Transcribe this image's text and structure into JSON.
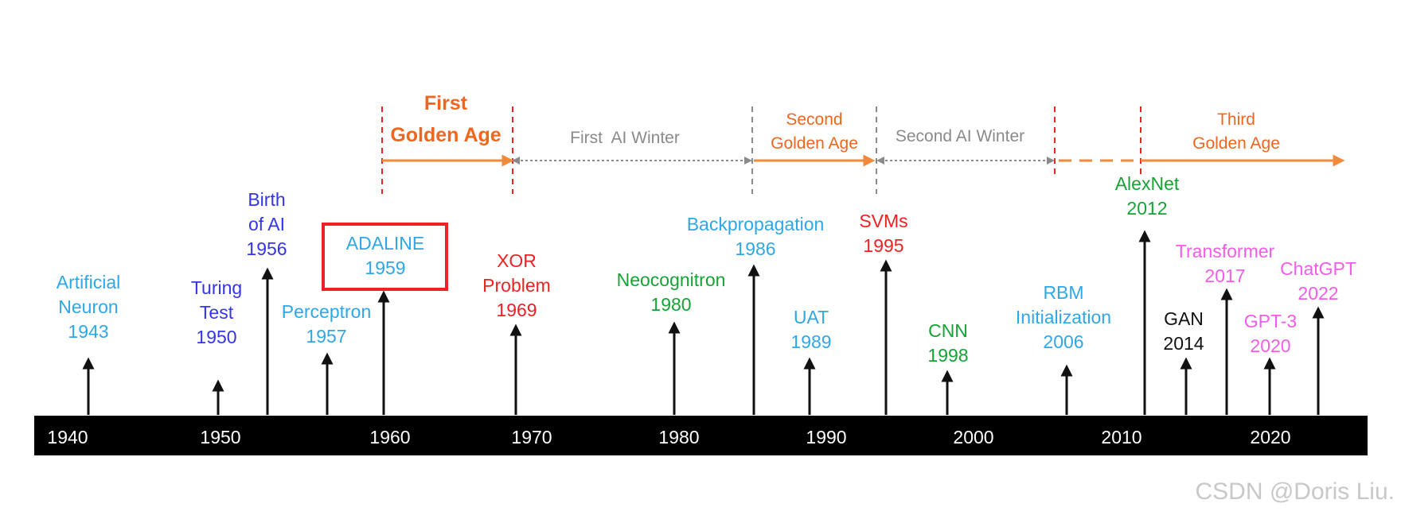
{
  "colors": {
    "light_blue": "#2fa7e6",
    "blue": "#3434e8",
    "red": "#ee2222",
    "green": "#16a336",
    "magenta": "#f25ce8",
    "black": "#111111",
    "orange": "#f0661e",
    "orange_light": "#f08a3c",
    "gray": "#8a8a8a",
    "axis_bg": "#000000",
    "axis_text": "#ffffff",
    "watermark": "#c8c8c8"
  },
  "axis": {
    "labels": [
      "1940",
      "1950",
      "1960",
      "1970",
      "1980",
      "1990",
      "2000",
      "2010",
      "2020"
    ]
  },
  "periods": {
    "first_golden_age": {
      "line1": "First",
      "line2": "Golden Age"
    },
    "first_ai_winter": {
      "label": "First  AI Winter"
    },
    "second_golden_age": {
      "line1": "Second",
      "line2": "Golden Age"
    },
    "second_ai_winter": {
      "label": "Second AI Winter"
    },
    "third_golden_age": {
      "line1": "Third",
      "line2": "Golden Age"
    }
  },
  "events": [
    {
      "lines": [
        "Artificial",
        "Neuron",
        "1943"
      ],
      "color": "light_blue"
    },
    {
      "lines": [
        "Turing",
        "Test",
        "1950"
      ],
      "color": "blue"
    },
    {
      "lines": [
        "Birth",
        "of AI",
        "1956"
      ],
      "color": "blue"
    },
    {
      "lines": [
        "Perceptron",
        "1957"
      ],
      "color": "light_blue"
    },
    {
      "lines": [
        "ADALINE",
        "1959"
      ],
      "color": "light_blue",
      "highlighted": true
    },
    {
      "lines": [
        "XOR",
        "Problem",
        "1969"
      ],
      "color": "red"
    },
    {
      "lines": [
        "Neocognitron",
        "1980"
      ],
      "color": "green"
    },
    {
      "lines": [
        "Backpropagation",
        "1986"
      ],
      "color": "light_blue"
    },
    {
      "lines": [
        "UAT",
        "1989"
      ],
      "color": "light_blue"
    },
    {
      "lines": [
        "SVMs",
        "1995"
      ],
      "color": "red"
    },
    {
      "lines": [
        "CNN",
        "1998"
      ],
      "color": "green"
    },
    {
      "lines": [
        "RBM",
        "Initialization",
        "2006"
      ],
      "color": "light_blue"
    },
    {
      "lines": [
        "AlexNet",
        "2012"
      ],
      "color": "green"
    },
    {
      "lines": [
        "GAN",
        "2014"
      ],
      "color": "black"
    },
    {
      "lines": [
        "Transformer",
        "2017"
      ],
      "color": "magenta"
    },
    {
      "lines": [
        "GPT-3",
        "2020"
      ],
      "color": "magenta"
    },
    {
      "lines": [
        "ChatGPT",
        "2022"
      ],
      "color": "magenta"
    }
  ],
  "watermark": "CSDN @Doris Liu."
}
